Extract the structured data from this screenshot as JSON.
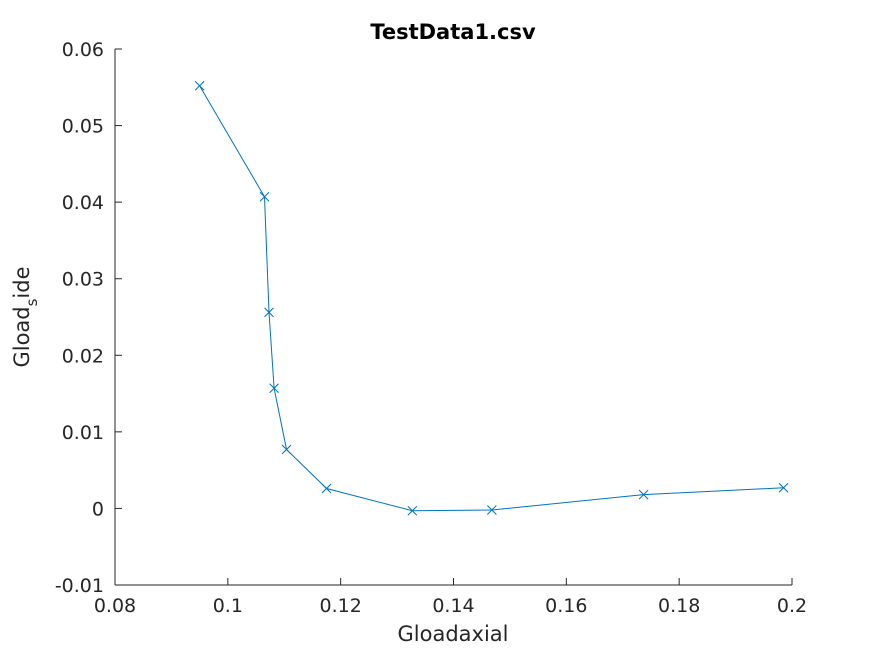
{
  "chart_data": {
    "type": "line",
    "title": "TestData1.csv",
    "xlabel": "Gloadaxial",
    "ylabel": {
      "main": "Gload",
      "subscript": "s",
      "rest": "ide"
    },
    "xlim": [
      0.08,
      0.2
    ],
    "ylim": [
      -0.01,
      0.06
    ],
    "xticks": [
      0.08,
      0.1,
      0.12,
      0.14,
      0.16,
      0.18,
      0.2
    ],
    "xtick_labels": [
      "0.08",
      "0.1",
      "0.12",
      "0.14",
      "0.16",
      "0.18",
      "0.2"
    ],
    "yticks": [
      -0.01,
      0,
      0.01,
      0.02,
      0.03,
      0.04,
      0.05,
      0.06
    ],
    "ytick_labels": [
      "-0.01",
      "0",
      "0.01",
      "0.02",
      "0.03",
      "0.04",
      "0.05",
      "0.06"
    ],
    "grid": false,
    "legend": false,
    "marker": "x",
    "color": "#0072bd",
    "series": [
      {
        "x": [
          0.095,
          0.1065,
          0.1073,
          0.1082,
          0.1104,
          0.1175,
          0.1327,
          0.1468,
          0.1737,
          0.1985
        ],
        "y": [
          0.0552,
          0.0407,
          0.0256,
          0.0157,
          0.0077,
          0.0026,
          -0.0003,
          -0.0002,
          0.0018,
          0.0027
        ]
      }
    ]
  }
}
